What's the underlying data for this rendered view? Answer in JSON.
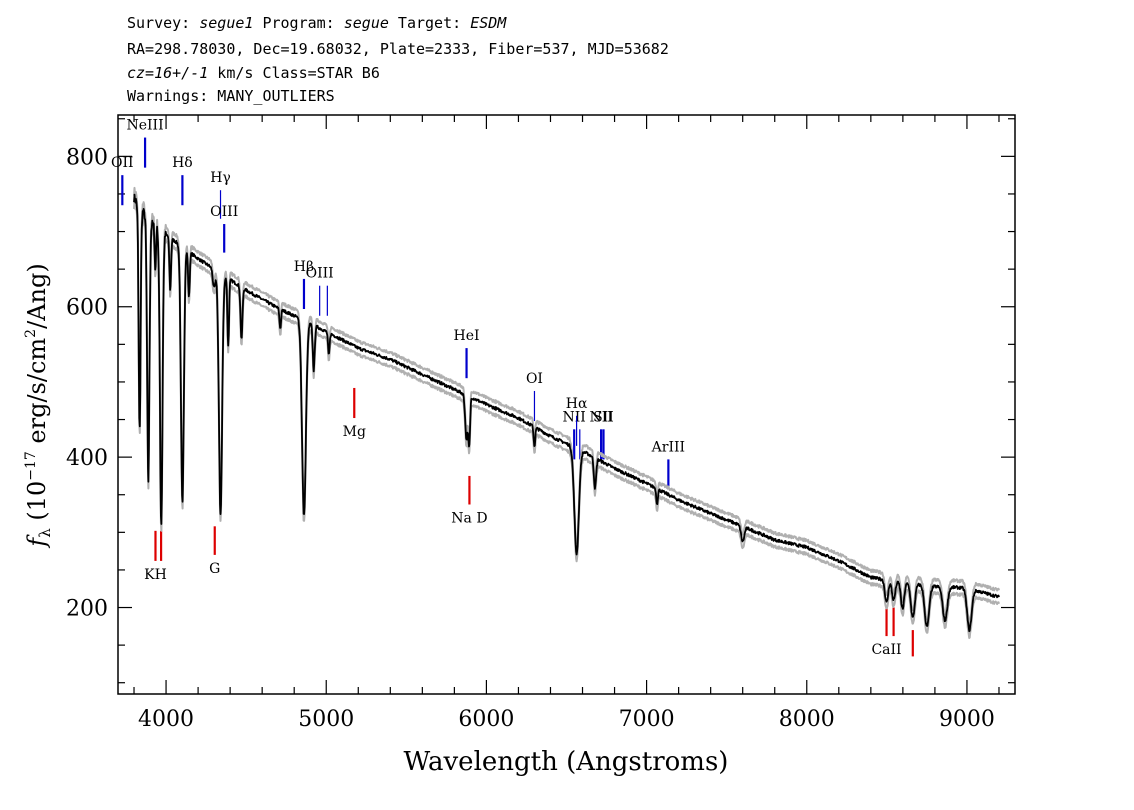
{
  "header": {
    "line1": {
      "survey_label": "Survey: ",
      "survey": "segue1",
      "program_label": " Program: ",
      "program": "segue",
      "target_label": " Target: ",
      "target": "ESDM"
    },
    "line2": "RA=298.78030, Dec=19.68032, Plate=2333, Fiber=537, MJD=53682",
    "line3": {
      "cz": "cz=16+/-1",
      "rest": " km/s Class=STAR B6"
    },
    "line4": "Warnings: MANY_OUTLIERS"
  },
  "colors": {
    "emission": "#0000cc",
    "absorption": "#dd0000",
    "spectrum": "#000000",
    "error": "#b0b0b0"
  },
  "chart_data": {
    "type": "line",
    "xlabel": "Wavelength (Angstroms)",
    "ylabel": "f_λ (10^-17 erg/s/cm^2/Ang)",
    "xlim": [
      3700,
      9300
    ],
    "ylim": [
      85,
      855
    ],
    "xticks": [
      4000,
      5000,
      6000,
      7000,
      8000,
      9000
    ],
    "yticks": [
      200,
      400,
      600,
      800
    ],
    "continuum": [
      [
        3800,
        745
      ],
      [
        3900,
        712
      ],
      [
        4000,
        696
      ],
      [
        4100,
        680
      ],
      [
        4200,
        664
      ],
      [
        4300,
        650
      ],
      [
        4400,
        636
      ],
      [
        4500,
        622
      ],
      [
        4600,
        610
      ],
      [
        4700,
        598
      ],
      [
        4800,
        588
      ],
      [
        4900,
        578
      ],
      [
        5000,
        567
      ],
      [
        5200,
        545
      ],
      [
        5400,
        530
      ],
      [
        5600,
        510
      ],
      [
        5800,
        490
      ],
      [
        6000,
        470
      ],
      [
        6200,
        452
      ],
      [
        6400,
        428
      ],
      [
        6600,
        408
      ],
      [
        6800,
        385
      ],
      [
        7000,
        365
      ],
      [
        7200,
        343
      ],
      [
        7400,
        325
      ],
      [
        7600,
        308
      ],
      [
        7800,
        290
      ],
      [
        8000,
        280
      ],
      [
        8200,
        262
      ],
      [
        8400,
        240
      ],
      [
        8600,
        233
      ],
      [
        8800,
        228
      ],
      [
        9000,
        226
      ],
      [
        9200,
        214
      ]
    ],
    "absorption_features": [
      {
        "x": 3835,
        "depth": 300,
        "width": 6
      },
      {
        "x": 3889,
        "depth": 350,
        "width": 7
      },
      {
        "x": 3933,
        "depth": 60,
        "width": 4
      },
      {
        "x": 3970,
        "depth": 390,
        "width": 8
      },
      {
        "x": 4026,
        "depth": 70,
        "width": 5
      },
      {
        "x": 4102,
        "depth": 340,
        "width": 9
      },
      {
        "x": 4143,
        "depth": 60,
        "width": 5
      },
      {
        "x": 4300,
        "depth": 25,
        "width": 8
      },
      {
        "x": 4340,
        "depth": 320,
        "width": 10
      },
      {
        "x": 4388,
        "depth": 90,
        "width": 5
      },
      {
        "x": 4471,
        "depth": 70,
        "width": 6
      },
      {
        "x": 4713,
        "depth": 25,
        "width": 5
      },
      {
        "x": 4861,
        "depth": 260,
        "width": 12
      },
      {
        "x": 4922,
        "depth": 60,
        "width": 6
      },
      {
        "x": 5016,
        "depth": 30,
        "width": 5
      },
      {
        "x": 5876,
        "depth": 60,
        "width": 8
      },
      {
        "x": 5890,
        "depth": 40,
        "width": 4
      },
      {
        "x": 5896,
        "depth": 40,
        "width": 4
      },
      {
        "x": 6300,
        "depth": 25,
        "width": 5
      },
      {
        "x": 6563,
        "depth": 140,
        "width": 14
      },
      {
        "x": 6678,
        "depth": 40,
        "width": 7
      },
      {
        "x": 7065,
        "depth": 20,
        "width": 5
      },
      {
        "x": 7600,
        "depth": 20,
        "width": 10
      },
      {
        "x": 8498,
        "depth": 30,
        "width": 10
      },
      {
        "x": 8542,
        "depth": 25,
        "width": 10
      },
      {
        "x": 8598,
        "depth": 35,
        "width": 10
      },
      {
        "x": 8662,
        "depth": 45,
        "width": 12
      },
      {
        "x": 8750,
        "depth": 55,
        "width": 14
      },
      {
        "x": 8863,
        "depth": 45,
        "width": 14
      },
      {
        "x": 9015,
        "depth": 55,
        "width": 14
      }
    ],
    "emission_markers": [
      {
        "label": "OII",
        "x": 3727,
        "y0": 775,
        "y1": 735
      },
      {
        "label": "NeIII",
        "x": 3869,
        "y0": 825,
        "y1": 785
      },
      {
        "label": "Hδ",
        "x": 4102,
        "y0": 775,
        "y1": 735
      },
      {
        "label": "Hγ",
        "x": 4340,
        "y0": 755,
        "y1": 717,
        "thin": true
      },
      {
        "label": "OIII",
        "x": 4363,
        "y0": 710,
        "y1": 672
      },
      {
        "label": "Hβ",
        "x": 4861,
        "y0": 637,
        "y1": 597
      },
      {
        "label": "OIII",
        "x": 4959,
        "y0": 628,
        "y1": 588,
        "thin": true
      },
      {
        "label": "",
        "x": 5007,
        "y0": 628,
        "y1": 588,
        "thin": true
      },
      {
        "label": "HeI",
        "x": 5876,
        "y0": 545,
        "y1": 505
      },
      {
        "label": "OI",
        "x": 6300,
        "y0": 488,
        "y1": 448,
        "thin": true
      },
      {
        "label": "NII",
        "x": 6548,
        "y0": 437,
        "y1": 397
      },
      {
        "label": "Hα",
        "x": 6563,
        "y0": 455,
        "y1": 415,
        "thin": true
      },
      {
        "label": "",
        "x": 6583,
        "y0": 437,
        "y1": 397,
        "thin": true
      },
      {
        "label": "NII",
        "x": 6716,
        "y0": 437,
        "y1": 397
      },
      {
        "label": "SII",
        "x": 6731,
        "y0": 437,
        "y1": 397
      },
      {
        "label": "ArIII",
        "x": 7136,
        "y0": 397,
        "y1": 357
      }
    ],
    "absorption_markers": [
      {
        "label": "KH",
        "x": 3934,
        "y0": 302,
        "y1": 262
      },
      {
        "label": "",
        "x": 3969,
        "y0": 302,
        "y1": 262
      },
      {
        "label": "G",
        "x": 4304,
        "y0": 308,
        "y1": 270
      },
      {
        "label": "Mg",
        "x": 5175,
        "y0": 492,
        "y1": 452
      },
      {
        "label": "Na D",
        "x": 5894,
        "y0": 375,
        "y1": 337
      },
      {
        "label": "CaII",
        "x": 8498,
        "y0": 200,
        "y1": 162
      },
      {
        "label": "",
        "x": 8542,
        "y0": 200,
        "y1": 162
      },
      {
        "label": "",
        "x": 8662,
        "y0": 170,
        "y1": 135
      }
    ]
  }
}
